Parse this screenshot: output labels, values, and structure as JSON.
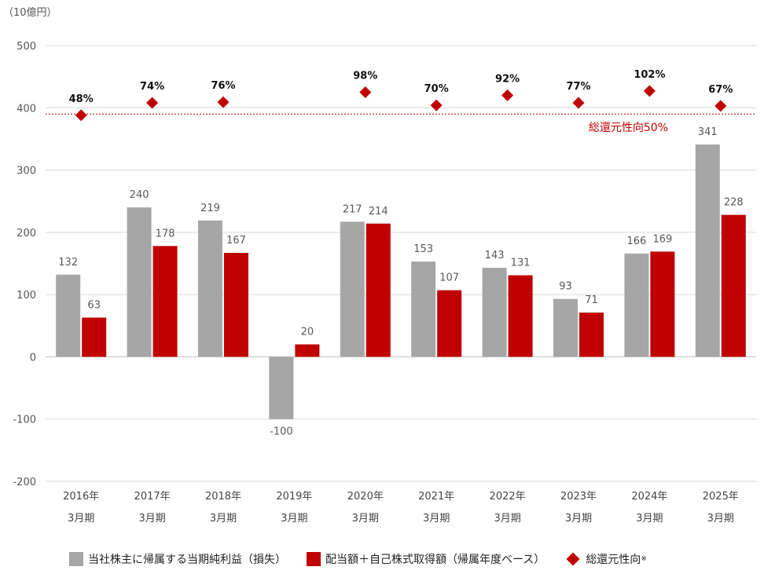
{
  "chart_data": {
    "type": "bar",
    "unit_label": "（10億円）",
    "categories": [
      "2016年",
      "2017年",
      "2018年",
      "2019年",
      "2020年",
      "2021年",
      "2022年",
      "2023年",
      "2024年",
      "2025年"
    ],
    "category_sublabel": "3月期",
    "ylim": [
      -200,
      500
    ],
    "yticks": [
      -200,
      -100,
      0,
      100,
      200,
      300,
      400,
      500
    ],
    "grid": true,
    "series": [
      {
        "name": "当社株主に帰属する当期純利益（損失）",
        "color": "#a6a6a6",
        "values": [
          132,
          240,
          219,
          -100,
          217,
          153,
          143,
          93,
          166,
          341
        ]
      },
      {
        "name": "配当額＋自己株式取得額（帰属年度ベース）",
        "color": "#c00000",
        "values": [
          63,
          178,
          167,
          20,
          214,
          107,
          131,
          71,
          169,
          228
        ]
      }
    ],
    "ratio_series": {
      "name": "総還元性向",
      "name_suffix": "※",
      "color": "#c00000",
      "marker": "diamond",
      "labels": [
        "48%",
        "74%",
        "76%",
        "",
        "98%",
        "70%",
        "92%",
        "77%",
        "102%",
        "67%"
      ],
      "plot_levels": [
        388,
        408,
        409,
        null,
        425,
        404,
        420,
        408,
        427,
        403
      ]
    },
    "reference_line": {
      "label": "総還元性向50%",
      "value": 390,
      "color": "#c00000"
    },
    "legend_position": "bottom"
  }
}
